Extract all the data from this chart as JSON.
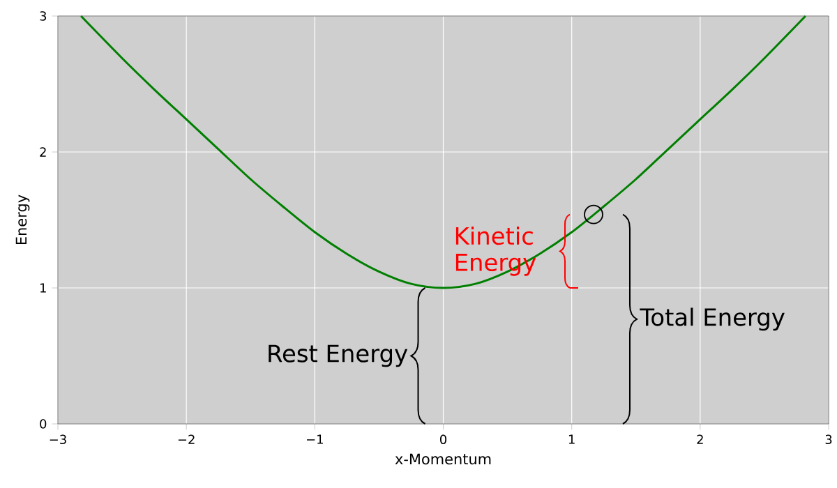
{
  "chart_data": {
    "type": "line",
    "xlabel": "x-Momentum",
    "ylabel": "Energy",
    "xlim": [
      -3,
      3
    ],
    "ylim": [
      0,
      3
    ],
    "xticks": [
      {
        "value": -3,
        "label": "−3"
      },
      {
        "value": -2,
        "label": "−2"
      },
      {
        "value": -1,
        "label": "−1"
      },
      0,
      1,
      2,
      3
    ],
    "yticks": [
      0,
      1,
      2,
      3
    ],
    "grid": true,
    "series": [
      {
        "color": "#007f00",
        "marker": "none",
        "x": [
          -2.82,
          -2.5,
          -2.25,
          -2,
          -1.75,
          -1.5,
          -1.25,
          -1,
          -0.75,
          -0.5,
          -0.25,
          0,
          0.25,
          0.5,
          0.75,
          1,
          1.25,
          1.5,
          1.75,
          2,
          2.25,
          2.5,
          2.82
        ],
        "values": [
          3.0,
          2.69,
          2.46,
          2.24,
          2.02,
          1.8,
          1.6,
          1.41,
          1.25,
          1.12,
          1.03,
          1.0,
          1.03,
          1.12,
          1.25,
          1.41,
          1.6,
          1.8,
          2.02,
          2.24,
          2.46,
          2.69,
          3.0
        ]
      },
      {
        "type": "scatter",
        "color": "#000000",
        "marker": "circle",
        "x": [
          1.17
        ],
        "values": [
          1.54
        ]
      }
    ],
    "annotations": [
      "Rest Energy",
      "Kinetic Energy",
      "Total Energy"
    ]
  }
}
